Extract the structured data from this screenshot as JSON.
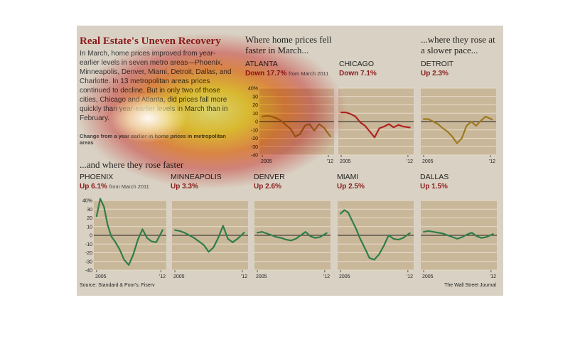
{
  "header": {
    "title": "Real Estate's Uneven Recovery",
    "intro": "In March, home prices improved from year-earlier levels in seven metro areas—Phoenix, Minneapolis, Denver, Miami, Detroit, Dallas, and Charlotte. In 13 metropolitan areas prices continued to decline. But in only two of those cities, Chicago and Atlanta, did prices fall more quickly than year-earlier levels in March than in February.",
    "change_note": "Change from a year earlier in home prices in metropolitan areas"
  },
  "sections": {
    "fell_faster": "Where home prices fell faster in March...",
    "rose_slower": "...where they rose at a slower pace...",
    "rose_faster": "...and where they rose faster"
  },
  "footer": {
    "source": "Source: Standard & Poor's; Fiserv",
    "credit": "The Wall Street Journal"
  },
  "colors": {
    "red_series": "#b22222",
    "gold_series": "#9c7a1e",
    "green_series": "#2e7d4a",
    "panel_background": "#c9b79a",
    "gridline": "#e8dcc8",
    "zero_line": "#222222",
    "title_red": "#8b1a1a"
  },
  "chart_data": [
    {
      "type": "line",
      "name": "ATLANTA",
      "stat": "Down 17.7%",
      "stat_note": "from March 2011",
      "color": "#9c7a1e",
      "x": [
        2005,
        2005.5,
        2006,
        2006.5,
        2007,
        2007.5,
        2008,
        2008.5,
        2009,
        2009.5,
        2010,
        2010.5,
        2011,
        2011.5,
        2012.2
      ],
      "values": [
        6,
        7,
        6,
        4,
        1,
        -4,
        -9,
        -18,
        -15,
        -5,
        -3,
        -11,
        -3,
        -7,
        -17.7
      ],
      "ylim": [
        -40,
        40
      ],
      "yticks": [
        "40%",
        "30",
        "20",
        "10",
        "0",
        "-10",
        "-20",
        "-30",
        "-40"
      ],
      "xticks": [
        "2005",
        "'12"
      ]
    },
    {
      "type": "line",
      "name": "CHICAGO",
      "stat": "Down 7.1%",
      "color": "#b22222",
      "x": [
        2005,
        2005.5,
        2006,
        2006.5,
        2007,
        2007.5,
        2008,
        2008.5,
        2009,
        2009.5,
        2010,
        2010.5,
        2011,
        2011.5,
        2012.2
      ],
      "values": [
        11,
        11,
        9,
        6,
        -1,
        -5,
        -12,
        -19,
        -8,
        -6,
        -3,
        -7,
        -4,
        -6,
        -7.1
      ],
      "ylim": [
        -40,
        40
      ],
      "xticks": [
        "2005",
        "'12"
      ]
    },
    {
      "type": "line",
      "name": "DETROIT",
      "stat": "Up 2.3%",
      "color": "#9c7a1e",
      "x": [
        2005,
        2005.5,
        2006,
        2006.5,
        2007,
        2007.5,
        2008,
        2008.5,
        2009,
        2009.5,
        2010,
        2010.5,
        2011,
        2011.5,
        2012.2
      ],
      "values": [
        3,
        3,
        0,
        -3,
        -8,
        -12,
        -18,
        -26,
        -20,
        -5,
        0,
        -5,
        1,
        6,
        2.3
      ],
      "ylim": [
        -40,
        40
      ],
      "xticks": [
        "2005",
        "'12"
      ]
    },
    {
      "type": "line",
      "name": "PHOENIX",
      "stat": "Up 6.1%",
      "stat_note": "from March 2011",
      "color": "#2e7d4a",
      "x": [
        2005,
        2005.4,
        2005.8,
        2006.2,
        2006.6,
        2007,
        2007.5,
        2008,
        2008.5,
        2009,
        2009.5,
        2010,
        2010.5,
        2011,
        2011.5,
        2012.2
      ],
      "values": [
        22,
        42,
        33,
        12,
        -1,
        -7,
        -16,
        -28,
        -34,
        -22,
        -5,
        7,
        -3,
        -7,
        -8,
        6.1
      ],
      "ylim": [
        -40,
        40
      ],
      "yticks": [
        "40%",
        "30",
        "20",
        "10",
        "0",
        "-10",
        "-20",
        "-30",
        "-40"
      ],
      "xticks": [
        "2005",
        "'12"
      ]
    },
    {
      "type": "line",
      "name": "MINNEAPOLIS",
      "stat": "Up 3.3%",
      "color": "#2e7d4a",
      "x": [
        2005,
        2005.5,
        2006,
        2006.5,
        2007,
        2007.5,
        2008,
        2008.5,
        2009,
        2009.5,
        2010,
        2010.5,
        2011,
        2011.5,
        2012.2
      ],
      "values": [
        6,
        5,
        3,
        0,
        -3,
        -7,
        -11,
        -19,
        -14,
        -3,
        11,
        -4,
        -8,
        -4,
        3.3
      ],
      "ylim": [
        -40,
        40
      ],
      "xticks": [
        "2005",
        "'12"
      ]
    },
    {
      "type": "line",
      "name": "DENVER",
      "stat": "Up 2.6%",
      "color": "#2e7d4a",
      "x": [
        2005,
        2005.5,
        2006,
        2006.5,
        2007,
        2007.5,
        2008,
        2008.5,
        2009,
        2009.5,
        2010,
        2010.5,
        2011,
        2011.5,
        2012.2
      ],
      "values": [
        3,
        4,
        2,
        0,
        -2,
        -3,
        -5,
        -6,
        -4,
        0,
        4,
        -1,
        -3,
        -2,
        2.6
      ],
      "ylim": [
        -40,
        40
      ],
      "xticks": [
        "2005",
        "'12"
      ]
    },
    {
      "type": "line",
      "name": "MIAMI",
      "stat": "Up 2.5%",
      "color": "#2e7d4a",
      "x": [
        2005,
        2005.4,
        2005.8,
        2006.2,
        2006.6,
        2007,
        2007.5,
        2008,
        2008.5,
        2009,
        2009.5,
        2010,
        2010.5,
        2011,
        2011.5,
        2012.2
      ],
      "values": [
        25,
        29,
        26,
        17,
        8,
        -3,
        -14,
        -26,
        -28,
        -22,
        -12,
        0,
        -4,
        -5,
        -3,
        2.5
      ],
      "ylim": [
        -40,
        40
      ],
      "xticks": [
        "2005",
        "'12"
      ]
    },
    {
      "type": "line",
      "name": "DALLAS",
      "stat": "Up 1.5%",
      "color": "#2e7d4a",
      "x": [
        2005,
        2005.5,
        2006,
        2006.5,
        2007,
        2007.5,
        2008,
        2008.5,
        2009,
        2009.5,
        2010,
        2010.5,
        2011,
        2011.5,
        2012.2
      ],
      "values": [
        4,
        5,
        4,
        3,
        2,
        0,
        -2,
        -4,
        -2,
        1,
        3,
        -1,
        -3,
        -2,
        1.5
      ],
      "ylim": [
        -40,
        40
      ],
      "xticks": [
        "2005",
        "'12"
      ]
    }
  ]
}
